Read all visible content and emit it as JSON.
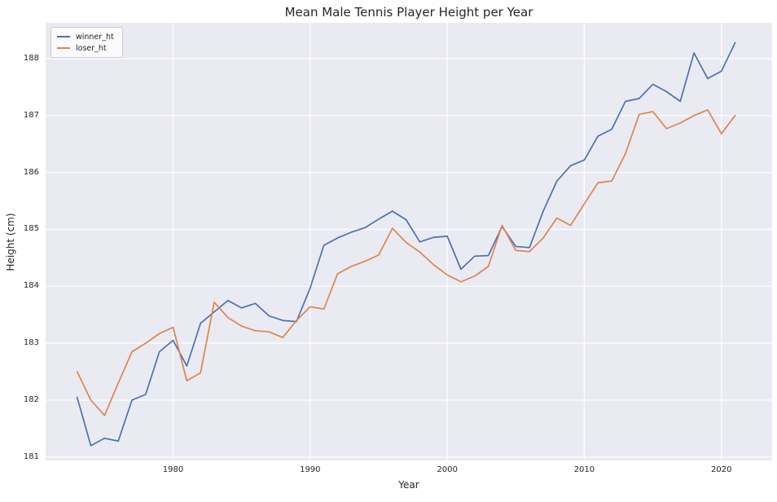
{
  "title": "Mean Male Tennis Player Height per Year",
  "axes": {
    "xlabel": "Year",
    "ylabel": "Height (cm)"
  },
  "legend": {
    "position": "upper left",
    "items": [
      {
        "label": "winner_ht",
        "color": "#4c72b0"
      },
      {
        "label": "loser_ht",
        "color": "#dd8452"
      }
    ]
  },
  "chart_data": {
    "type": "line",
    "title": "Mean Male Tennis Player Height per Year",
    "xlabel": "Year",
    "ylabel": "Height (cm)",
    "grid": true,
    "plot_background": "#eaeaf2",
    "gridline_color": "#ffffff",
    "legend_position": "upper left",
    "xlim": [
      1970.7,
      2023.7
    ],
    "ylim": [
      180.94,
      188.63
    ],
    "x_ticks": [
      1980,
      1990,
      2000,
      2010,
      2020
    ],
    "y_ticks": [
      181,
      182,
      183,
      184,
      185,
      186,
      187,
      188
    ],
    "x": [
      1973,
      1974,
      1975,
      1976,
      1977,
      1978,
      1979,
      1980,
      1981,
      1982,
      1983,
      1984,
      1985,
      1986,
      1987,
      1988,
      1989,
      1990,
      1991,
      1992,
      1993,
      1994,
      1995,
      1996,
      1997,
      1998,
      1999,
      2000,
      2001,
      2002,
      2003,
      2004,
      2005,
      2006,
      2007,
      2008,
      2009,
      2010,
      2011,
      2012,
      2013,
      2014,
      2015,
      2016,
      2017,
      2018,
      2019,
      2020,
      2021
    ],
    "series": [
      {
        "name": "winner_ht",
        "color": "#4c72b0",
        "values": [
          182.05,
          181.2,
          181.33,
          181.28,
          182.0,
          182.1,
          182.85,
          183.05,
          182.6,
          183.35,
          183.55,
          183.75,
          183.62,
          183.7,
          183.48,
          183.4,
          183.38,
          183.97,
          184.72,
          184.85,
          184.95,
          185.03,
          185.18,
          185.32,
          185.17,
          184.78,
          184.86,
          184.88,
          184.3,
          184.53,
          184.54,
          185.05,
          184.7,
          184.68,
          185.32,
          185.85,
          186.12,
          186.22,
          186.64,
          186.76,
          187.25,
          187.3,
          187.55,
          187.42,
          187.25,
          188.1,
          187.65,
          187.78,
          188.28
        ]
      },
      {
        "name": "loser_ht",
        "color": "#dd8452",
        "values": [
          182.5,
          182.0,
          181.73,
          182.3,
          182.85,
          183.0,
          183.17,
          183.28,
          182.34,
          182.48,
          183.72,
          183.45,
          183.3,
          183.22,
          183.2,
          183.1,
          183.4,
          183.64,
          183.6,
          184.22,
          184.35,
          184.44,
          184.55,
          185.02,
          184.77,
          184.6,
          184.38,
          184.2,
          184.08,
          184.18,
          184.35,
          185.07,
          184.63,
          184.61,
          184.85,
          185.2,
          185.07,
          185.45,
          185.82,
          185.85,
          186.33,
          187.02,
          187.07,
          186.77,
          186.87,
          187.0,
          187.1,
          186.68,
          187.0
        ]
      }
    ]
  }
}
